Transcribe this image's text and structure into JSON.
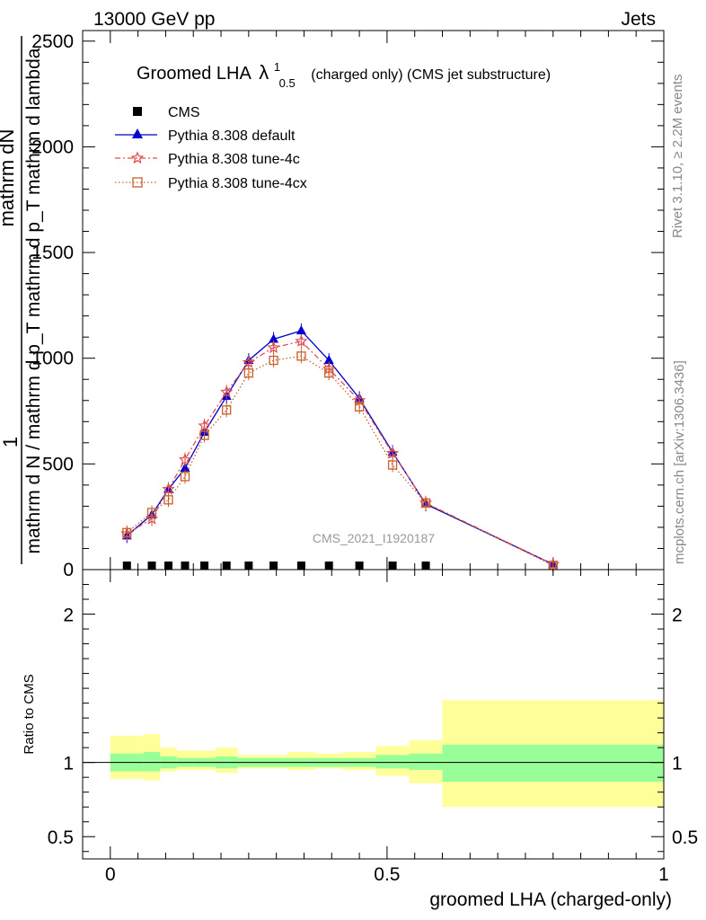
{
  "header": {
    "left": "13000 GeV pp",
    "right": "Jets"
  },
  "side_labels": {
    "rivet": "Rivet 3.1.10, ≥ 2.2M events",
    "mcplots": "mcplots.cern.ch [arXiv:1306.3436]"
  },
  "colors": {
    "default": "#0000cc",
    "tune4c": "#e05050",
    "tune4cx": "#c8602a",
    "band_inner": "#98ff98",
    "band_outer": "#ffff99"
  },
  "chart_data": [
    {
      "type": "line",
      "title": "Groomed LHA",
      "title_symbol": "λ",
      "title_sup": "1",
      "title_sub": "0.5",
      "subtitle": "(charged only) (CMS jet substructure)",
      "ylabel_top": "1",
      "ylabel_num": "mathrm dN",
      "ylabel_den": "mathrm d N / mathrm d p_T mathrm d p_T mathrm d lambda",
      "watermark": "CMS_2021_I1920187",
      "xlim": [
        -0.05,
        1.0
      ],
      "ylim": [
        0,
        2550
      ],
      "yticks": [
        0,
        500,
        1000,
        1500,
        2000,
        2500
      ],
      "ytick_labels": [
        "0",
        "500",
        "1000",
        "1500",
        "2000",
        "2500"
      ],
      "legend_position": "top-left",
      "series": [
        {
          "name": "CMS",
          "marker": "square",
          "x": [
            0.03,
            0.075,
            0.105,
            0.135,
            0.17,
            0.21,
            0.25,
            0.295,
            0.345,
            0.395,
            0.45,
            0.51,
            0.57
          ],
          "values": [
            0,
            0,
            0,
            0,
            0,
            0,
            0,
            0,
            0,
            0,
            0,
            0,
            0
          ]
        },
        {
          "name": "Pythia 8.308 default",
          "marker": "triangle",
          "x": [
            0.03,
            0.075,
            0.105,
            0.135,
            0.17,
            0.21,
            0.25,
            0.295,
            0.345,
            0.395,
            0.45,
            0.51,
            0.57,
            0.8
          ],
          "values": [
            160,
            260,
            380,
            480,
            650,
            820,
            990,
            1090,
            1130,
            990,
            810,
            555,
            310,
            25
          ]
        },
        {
          "name": "Pythia 8.308 tune-4c",
          "marker": "star",
          "x": [
            0.03,
            0.075,
            0.105,
            0.135,
            0.17,
            0.21,
            0.25,
            0.295,
            0.345,
            0.395,
            0.45,
            0.51,
            0.57,
            0.8
          ],
          "values": [
            170,
            240,
            380,
            520,
            680,
            840,
            980,
            1050,
            1080,
            950,
            800,
            550,
            315,
            25
          ]
        },
        {
          "name": "Pythia 8.308 tune-4cx",
          "marker": "open-square",
          "x": [
            0.03,
            0.075,
            0.105,
            0.135,
            0.17,
            0.21,
            0.25,
            0.295,
            0.345,
            0.395,
            0.45,
            0.51,
            0.57,
            0.8
          ],
          "values": [
            175,
            270,
            330,
            440,
            635,
            755,
            930,
            990,
            1010,
            930,
            770,
            495,
            315,
            20
          ]
        }
      ]
    },
    {
      "type": "area",
      "ylabel": "Ratio to CMS",
      "xlabel": "groomed LHA (charged-only)",
      "xlim": [
        -0.05,
        1.0
      ],
      "xticks": [
        0,
        0.5,
        1
      ],
      "xtick_labels": [
        "0",
        "0.5",
        "1"
      ],
      "ylim": [
        0.35,
        2.3
      ],
      "yticks": [
        0.5,
        1,
        2
      ],
      "ytick_labels": [
        "0.5",
        "1",
        "2"
      ],
      "bins": [
        {
          "lo": 0.0,
          "hi": 0.06,
          "inner": [
            0.94,
            1.06
          ],
          "outer": [
            0.89,
            1.18
          ]
        },
        {
          "lo": 0.06,
          "hi": 0.09,
          "inner": [
            0.94,
            1.07
          ],
          "outer": [
            0.88,
            1.19
          ]
        },
        {
          "lo": 0.09,
          "hi": 0.12,
          "inner": [
            0.96,
            1.04
          ],
          "outer": [
            0.94,
            1.1
          ]
        },
        {
          "lo": 0.12,
          "hi": 0.15,
          "inner": [
            0.97,
            1.03
          ],
          "outer": [
            0.95,
            1.08
          ]
        },
        {
          "lo": 0.15,
          "hi": 0.19,
          "inner": [
            0.97,
            1.03
          ],
          "outer": [
            0.95,
            1.08
          ]
        },
        {
          "lo": 0.19,
          "hi": 0.23,
          "inner": [
            0.96,
            1.04
          ],
          "outer": [
            0.93,
            1.1
          ]
        },
        {
          "lo": 0.23,
          "hi": 0.27,
          "inner": [
            0.97,
            1.03
          ],
          "outer": [
            0.96,
            1.05
          ]
        },
        {
          "lo": 0.27,
          "hi": 0.32,
          "inner": [
            0.97,
            1.03
          ],
          "outer": [
            0.96,
            1.05
          ]
        },
        {
          "lo": 0.32,
          "hi": 0.37,
          "inner": [
            0.97,
            1.03
          ],
          "outer": [
            0.95,
            1.07
          ]
        },
        {
          "lo": 0.37,
          "hi": 0.42,
          "inner": [
            0.97,
            1.03
          ],
          "outer": [
            0.96,
            1.06
          ]
        },
        {
          "lo": 0.42,
          "hi": 0.48,
          "inner": [
            0.97,
            1.03
          ],
          "outer": [
            0.95,
            1.07
          ]
        },
        {
          "lo": 0.48,
          "hi": 0.54,
          "inner": [
            0.96,
            1.05
          ],
          "outer": [
            0.91,
            1.11
          ]
        },
        {
          "lo": 0.54,
          "hi": 0.6,
          "inner": [
            0.95,
            1.06
          ],
          "outer": [
            0.86,
            1.15
          ]
        },
        {
          "lo": 0.6,
          "hi": 1.0,
          "inner": [
            0.87,
            1.12
          ],
          "outer": [
            0.7,
            1.42
          ]
        }
      ]
    }
  ]
}
